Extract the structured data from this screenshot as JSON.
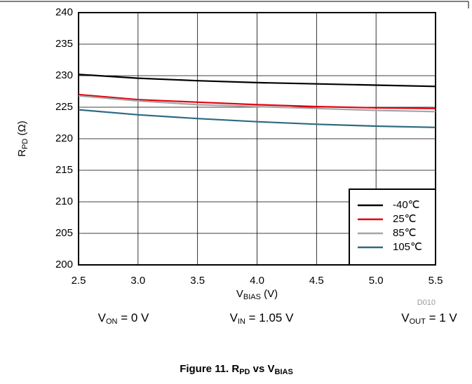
{
  "chart_data": {
    "type": "line",
    "x_label": {
      "main": "V",
      "sub": "BIAS",
      "rest": " (V)"
    },
    "y_label": {
      "main": "R",
      "sub": "PD",
      "rest": " (Ω)"
    },
    "x": [
      2.5,
      3.0,
      3.5,
      4.0,
      4.5,
      5.0,
      5.5
    ],
    "series": [
      {
        "name": "-40℃",
        "color": "#000000",
        "values": [
          230.2,
          229.6,
          229.2,
          228.9,
          228.7,
          228.5,
          228.3
        ]
      },
      {
        "name": "25℃",
        "color": "#e3000f",
        "values": [
          227.0,
          226.2,
          225.8,
          225.4,
          225.1,
          224.9,
          224.8
        ]
      },
      {
        "name": "85℃",
        "color": "#a6a6a6",
        "values": [
          226.8,
          226.0,
          225.4,
          225.1,
          224.8,
          224.5,
          224.3
        ]
      },
      {
        "name": "105℃",
        "color": "#2d6a80",
        "values": [
          224.6,
          223.8,
          223.2,
          222.7,
          222.3,
          222.0,
          221.8
        ]
      }
    ],
    "xlim": [
      2.5,
      5.5
    ],
    "xticks": [
      2.5,
      {
        "value": 3,
        "label": "3.0"
      },
      3.5,
      {
        "value": 4,
        "label": "4.0"
      },
      4.5,
      {
        "value": 5,
        "label": "5.0"
      },
      5.5
    ],
    "ylim": [
      200,
      240
    ],
    "yticks": [
      200,
      205,
      210,
      215,
      220,
      225,
      230,
      235,
      240
    ],
    "grid": true,
    "legend_position": "lower right",
    "code": "D010",
    "annotations": [
      {
        "main": "V",
        "sub": "ON",
        "rest": " = 0 V"
      },
      {
        "main": "V",
        "sub": "IN",
        "rest": " = 1.05 V"
      },
      {
        "main": "V",
        "sub": "OUT",
        "rest": " = 1 V"
      }
    ],
    "caption": {
      "prefix": "Figure 11. R",
      "sub": "PD",
      "mid": " vs V",
      "sub2": "BIAS"
    }
  }
}
